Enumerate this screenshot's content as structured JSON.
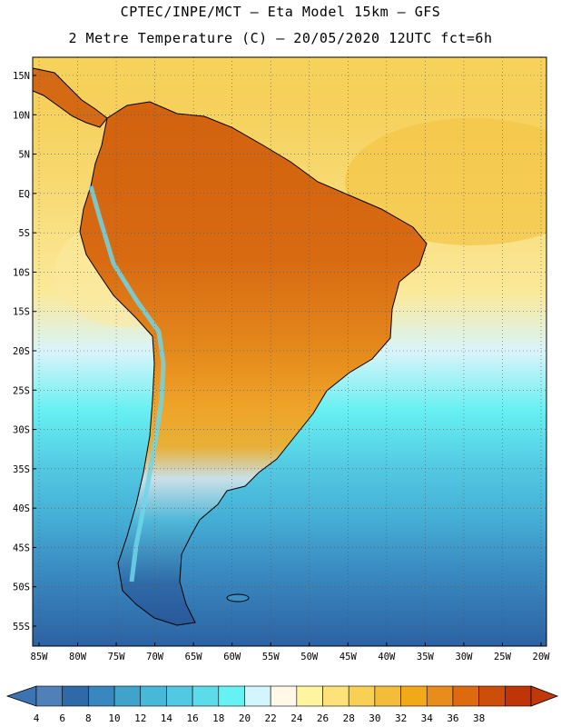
{
  "title_line1": "CPTEC/INPE/MCT –  Eta Model 15km – GFS",
  "title_line2": "2 Metre Temperature (C) – 20/05/2020 12UTC fct=6h",
  "lat_labels": [
    "15N",
    "10N",
    "5N",
    "EQ",
    "5S",
    "10S",
    "15S",
    "20S",
    "25S",
    "30S",
    "35S",
    "40S",
    "45S",
    "50S",
    "55S"
  ],
  "lat_values": [
    15,
    10,
    5,
    0,
    -5,
    -10,
    -15,
    -20,
    -25,
    -30,
    -35,
    -40,
    -45,
    -50,
    -55
  ],
  "lon_labels": [
    "85W",
    "80W",
    "75W",
    "70W",
    "65W",
    "60W",
    "55W",
    "50W",
    "45W",
    "40W",
    "35W",
    "30W",
    "25W",
    "20W"
  ],
  "lon_values": [
    -85,
    -80,
    -75,
    -70,
    -65,
    -60,
    -55,
    -50,
    -45,
    -40,
    -35,
    -30,
    -25,
    -20
  ],
  "colorbar": {
    "labels": [
      "4",
      "6",
      "8",
      "10",
      "12",
      "14",
      "16",
      "18",
      "20",
      "22",
      "24",
      "26",
      "28",
      "30",
      "32",
      "34",
      "36",
      "38"
    ],
    "colors": [
      "#4f80b8",
      "#2f6aa8",
      "#3a86be",
      "#3fa3cc",
      "#48b8d8",
      "#52c8e2",
      "#5cdce8",
      "#66f2f2",
      "#d2f6fc",
      "#fff8e6",
      "#fff4a0",
      "#fde27a",
      "#f7d054",
      "#f3bd3a",
      "#f1a919",
      "#e88d1c",
      "#dd6a0f",
      "#cc4e0a",
      "#bf3508"
    ],
    "under_color": "#3b74b0",
    "over_color": "#c0390a"
  }
}
